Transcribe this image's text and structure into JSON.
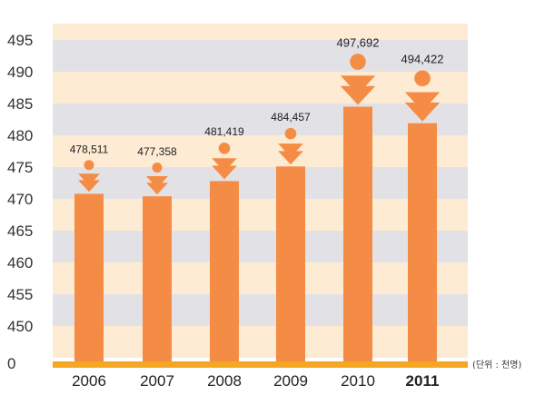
{
  "chart_data": {
    "type": "bar",
    "categories": [
      "2006",
      "2007",
      "2008",
      "2009",
      "2010",
      "2011"
    ],
    "values": [
      478511,
      477358,
      481419,
      484457,
      497692,
      494422
    ],
    "value_labels": [
      "478,511",
      "477,358",
      "481,419",
      "484,457",
      "497,692",
      "494,422"
    ],
    "highlight_category": "2011",
    "unit_label": "(단위 : 천명)",
    "y_tick_labels": [
      "0",
      "450",
      "455",
      "460",
      "465",
      "470",
      "475",
      "480",
      "485",
      "490",
      "495"
    ],
    "ylim": [
      0,
      495
    ],
    "axis_break": true,
    "grid": "alternating bands",
    "title": "",
    "xlabel": "",
    "ylabel": ""
  },
  "colors": {
    "bar": "#F58C45",
    "marker": "#F58C45",
    "band_light": "#FDEBD3",
    "band_gray": "#E2E2E6",
    "baseline": "#F5A623"
  }
}
